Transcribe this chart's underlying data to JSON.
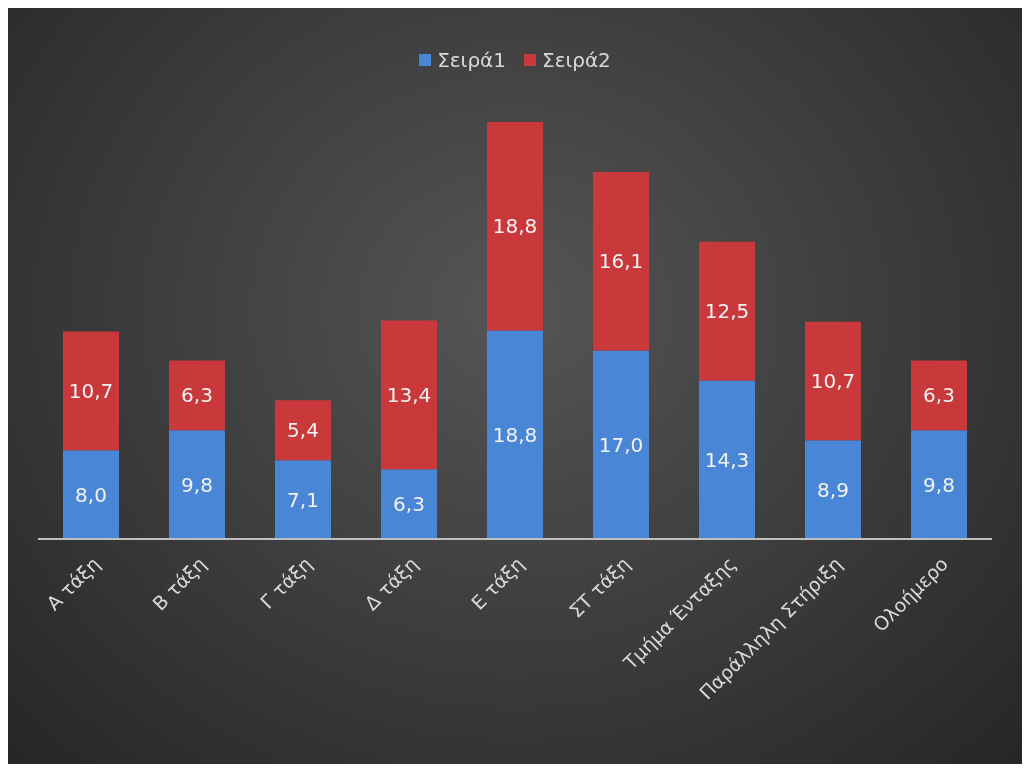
{
  "chart_data": {
    "type": "bar",
    "stacked": true,
    "legend": "top",
    "grid": false,
    "categories": [
      "Α τάξη",
      "Β τάξη",
      "Γ τάξη",
      "Δ τάξη",
      "Ε τάξη",
      "ΣΤ τάξη",
      "Τμήμα Ένταξης",
      "Παράλληλη Στήριξη",
      "Ολοήμερο"
    ],
    "series": [
      {
        "name": "Σειρά1",
        "color": "#4a86d6",
        "values": [
          8.0,
          9.8,
          7.1,
          6.3,
          18.8,
          17.0,
          14.3,
          8.9,
          9.8
        ],
        "value_labels": [
          "8,0",
          "9,8",
          "7,1",
          "6,3",
          "18,8",
          "17,0",
          "14,3",
          "8,9",
          "9,8"
        ]
      },
      {
        "name": "Σειρά2",
        "color": "#c9393b",
        "values": [
          10.7,
          6.3,
          5.4,
          13.4,
          18.8,
          16.1,
          12.5,
          10.7,
          6.3
        ],
        "value_labels": [
          "10,7",
          "6,3",
          "5,4",
          "13,4",
          "18,8",
          "16,1",
          "12,5",
          "10,7",
          "6,3"
        ]
      }
    ]
  }
}
